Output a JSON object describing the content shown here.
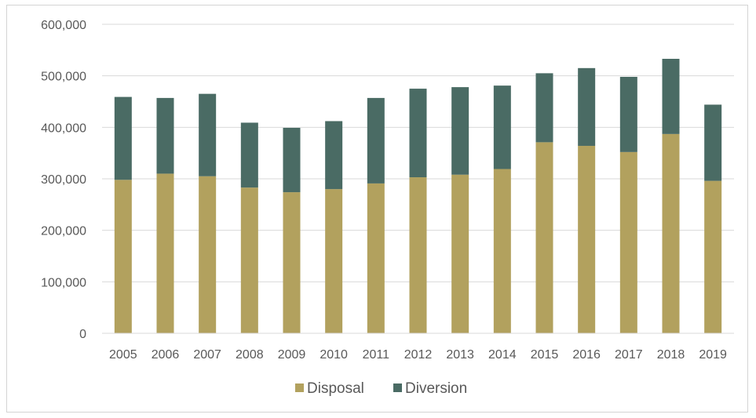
{
  "chart_data": {
    "type": "bar",
    "stacked": true,
    "title": "",
    "xlabel": "",
    "ylabel": "",
    "categories": [
      "2005",
      "2006",
      "2007",
      "2008",
      "2009",
      "2010",
      "2011",
      "2012",
      "2013",
      "2014",
      "2015",
      "2016",
      "2017",
      "2018",
      "2019"
    ],
    "series": [
      {
        "name": "Disposal",
        "color": "#b2a15e",
        "values": [
          298000,
          310000,
          305000,
          283000,
          274000,
          280000,
          291000,
          303000,
          308000,
          319000,
          371000,
          364000,
          352000,
          387000,
          296000
        ]
      },
      {
        "name": "Diversion",
        "color": "#4a6b64",
        "values": [
          161000,
          147000,
          160000,
          126000,
          125000,
          132000,
          166000,
          172000,
          170000,
          162000,
          134000,
          151000,
          146000,
          146000,
          148000
        ]
      }
    ],
    "ylim": [
      0,
      600000
    ],
    "yticks": [
      0,
      100000,
      200000,
      300000,
      400000,
      500000,
      600000
    ],
    "ytick_labels": [
      "0",
      "100,000",
      "200,000",
      "300,000",
      "400,000",
      "500,000",
      "600,000"
    ],
    "grid": true,
    "legend_position": "bottom"
  }
}
